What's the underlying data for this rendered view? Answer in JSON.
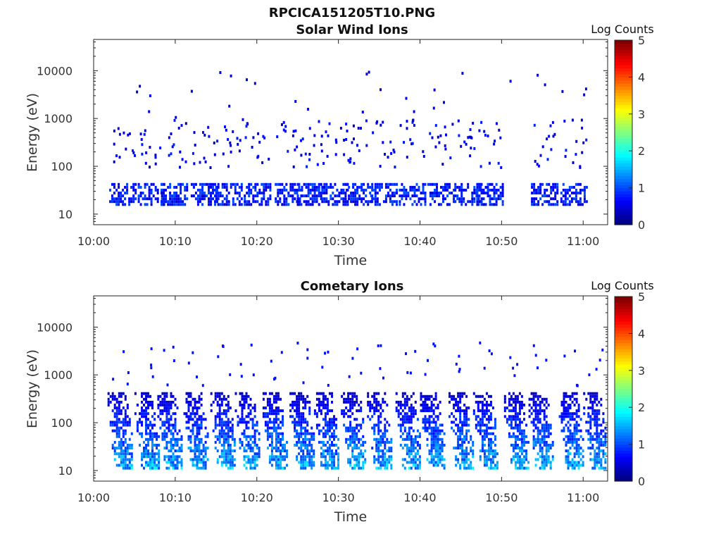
{
  "figure_title": "RPCICA151205T10.PNG",
  "chart_data": [
    {
      "type": "heatmap",
      "title": "Solar Wind Ions",
      "xlabel": "Time",
      "ylabel": "Energy (eV)",
      "xlim": [
        "10:00",
        "11:03"
      ],
      "ylim": [
        6,
        45000
      ],
      "yscale": "log",
      "xticks": [
        "10:00",
        "10:10",
        "10:20",
        "10:30",
        "10:40",
        "10:50",
        "11:00"
      ],
      "yticks": [
        "10",
        "100",
        "1000",
        "10000"
      ],
      "colorbar": {
        "label": "Log Counts",
        "range": [
          0,
          5
        ],
        "ticks": [
          "0",
          "1",
          "2",
          "3",
          "4",
          "5"
        ]
      },
      "grid": false,
      "blob_columns_minutes": [
        3.5,
        7.0,
        9.8,
        13.5,
        16.5,
        20.0,
        23.8,
        26.5,
        29.5,
        32.5,
        35.5,
        39.0,
        42.5,
        45.8,
        48.5,
        55.2,
        58.8
      ],
      "low_band_eV": [
        17,
        45
      ],
      "sample_value_log_counts": 0.8
    },
    {
      "type": "heatmap",
      "title": "Cometary Ions",
      "xlabel": "Time",
      "ylabel": "Energy (eV)",
      "xlim": [
        "10:00",
        "11:03"
      ],
      "ylim": [
        6,
        45000
      ],
      "yscale": "log",
      "xticks": [
        "10:00",
        "10:10",
        "10:20",
        "10:30",
        "10:40",
        "10:50",
        "11:00"
      ],
      "yticks": [
        "10",
        "100",
        "1000",
        "10000"
      ],
      "colorbar": {
        "label": "Log Counts",
        "range": [
          0,
          5
        ],
        "ticks": [
          "0",
          "1",
          "2",
          "3",
          "4",
          "5"
        ]
      },
      "grid": false,
      "blob_columns_minutes": [
        3.2,
        6.5,
        9.3,
        12.5,
        15.8,
        18.8,
        22.2,
        25.5,
        28.5,
        31.8,
        35.0,
        38.5,
        41.5,
        45.0,
        48.0,
        51.8,
        54.8,
        58.5,
        61.5
      ],
      "energy_band_eV": [
        12,
        500
      ],
      "peak_value_log_counts": 1.8
    }
  ]
}
